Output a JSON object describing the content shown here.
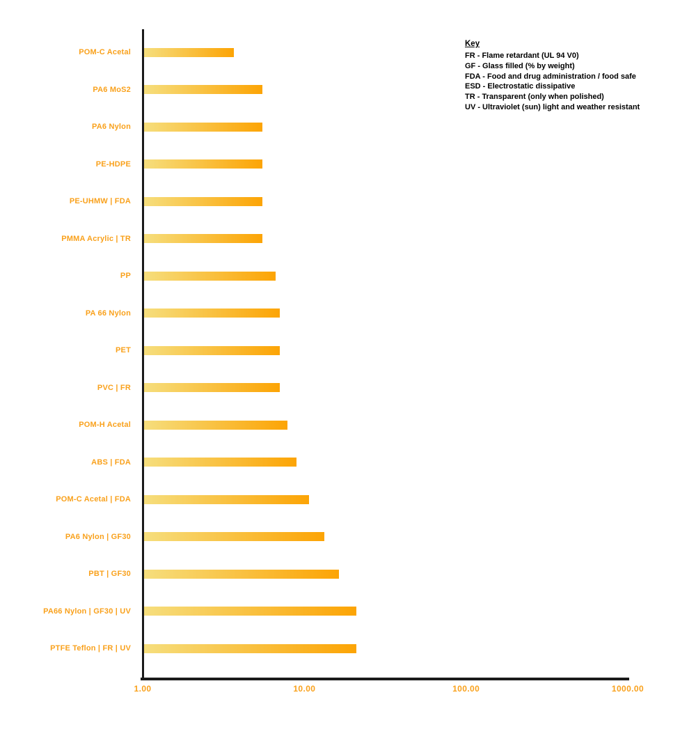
{
  "chart_data": {
    "type": "bar",
    "orientation": "horizontal",
    "x_scale": "log",
    "title": "",
    "xlabel": "",
    "ylabel": "",
    "x_range": [
      1,
      1000
    ],
    "x_ticks": [
      "1.00",
      "10.00",
      "100.00",
      "1000.00"
    ],
    "grid": false,
    "legend_position": "top-right",
    "categories": [
      "POM-C Acetal",
      "PA6 MoS2",
      "PA6 Nylon",
      "PE-HDPE",
      "PE-UHMW | FDA",
      "PMMA Acrylic | TR",
      "PP",
      "PA 66 Nylon",
      "PET",
      "PVC | FR",
      "POM-H Acetal",
      "ABS | FDA",
      "POM-C Acetal | FDA",
      "PA6 Nylon | GF30",
      "PBT | GF30",
      "PA66 Nylon | GF30 | UV",
      "PTFE Teflon | FR | UV"
    ],
    "values": [
      3.6,
      5.4,
      5.4,
      5.4,
      5.4,
      5.4,
      6.5,
      6.9,
      6.9,
      6.9,
      7.7,
      8.8,
      10.5,
      13.0,
      16.0,
      20.5,
      20.5
    ]
  },
  "key": {
    "title": "Key",
    "entries": [
      "FR - Flame retardant (UL 94 V0)",
      "GF - Glass filled (% by weight)",
      "FDA - Food and drug administration / food safe",
      "ESD - Electrostatic dissipative",
      "TR - Transparent (only when polished)",
      "UV - Ultraviolet (sun) light and weather resistant"
    ]
  },
  "colors": {
    "label": "#F9A11C",
    "tick_label": "#F9A11C",
    "bar_gradient_start": "#F6DE7D",
    "bar_gradient_end": "#FCA405",
    "axis": "#1A1A1A",
    "key_text": "#000000",
    "background": "#FFFFFF"
  }
}
